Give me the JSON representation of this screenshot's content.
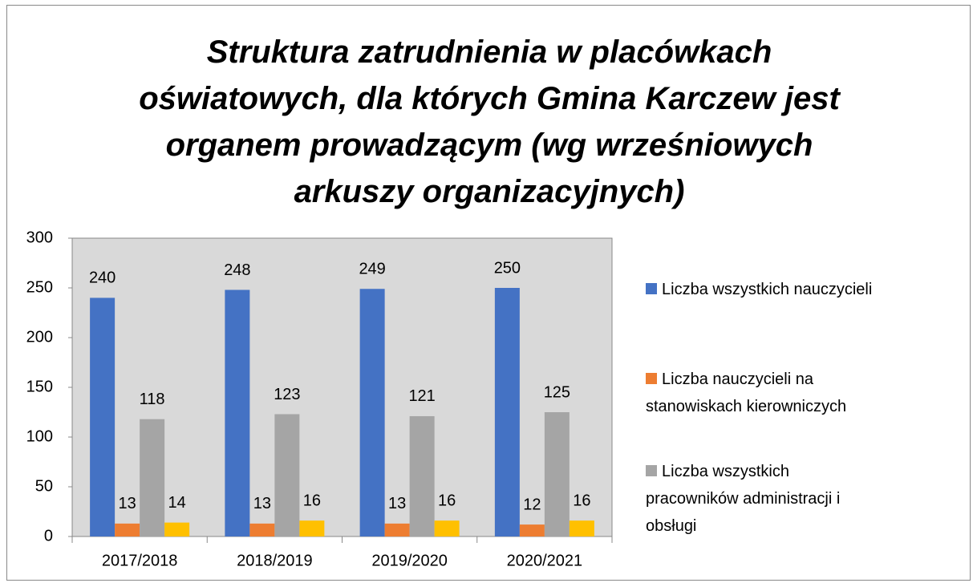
{
  "chart_data": {
    "type": "bar",
    "title": "Struktura zatrudnienia w placówkach oświatowych, dla których Gmina Karczew jest organem prowadzącym (wg wrześniowych arkuszy organizacyjnych)",
    "categories": [
      "2017/2018",
      "2018/2019",
      "2019/2020",
      "2020/2021"
    ],
    "series": [
      {
        "name": "Liczba wszystkich nauczycieli",
        "color": "#4472c4",
        "values": [
          240,
          248,
          249,
          250
        ]
      },
      {
        "name": "Liczba nauczycieli na stanowiskach kierowniczych",
        "color": "#ed7d31",
        "values": [
          13,
          13,
          13,
          12
        ]
      },
      {
        "name": "Liczba wszystkich pracowników administracji i obsługi",
        "color": "#a5a5a5",
        "values": [
          118,
          123,
          121,
          125
        ]
      },
      {
        "color": "#ffc000",
        "values": [
          14,
          16,
          16,
          16
        ]
      }
    ],
    "ylim": [
      0,
      300
    ],
    "yticks": [
      0,
      50,
      100,
      150,
      200,
      250,
      300
    ],
    "grid": false,
    "legend": "right"
  }
}
